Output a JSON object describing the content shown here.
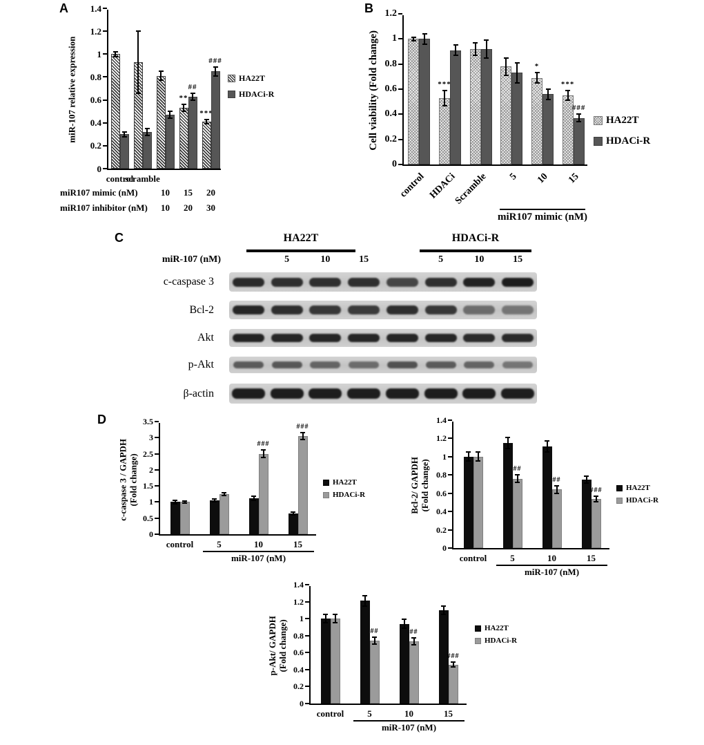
{
  "panels": {
    "a": "A",
    "b": "B",
    "c": "C",
    "d": "D"
  },
  "colors": {
    "dark_bar": "#565656",
    "black_bar": "#0d0d0d",
    "gray_bar": "#9b9b9b",
    "axis": "#000000"
  },
  "chart_data": [
    {
      "id": "A",
      "type": "bar",
      "ylabel": "miR-107 relative expression",
      "ylim": [
        0,
        1.4
      ],
      "ytick_step": 0.2,
      "categories": [
        "control",
        "scramble",
        "",
        "",
        ""
      ],
      "legend_position": "right",
      "series": [
        {
          "name": "HA22T",
          "style": "hatch-diagonal",
          "values": [
            1.0,
            0.93,
            0.81,
            0.53,
            0.41
          ],
          "errors": [
            0.02,
            0.27,
            0.04,
            0.03,
            0.02
          ],
          "annotations": [
            "",
            "",
            "",
            "**",
            "***"
          ]
        },
        {
          "name": "HDACi-R",
          "style": "solid-dark",
          "values": [
            0.3,
            0.32,
            0.47,
            0.63,
            0.85
          ],
          "errors": [
            0.02,
            0.03,
            0.03,
            0.03,
            0.04
          ],
          "annotations": [
            "",
            "",
            "",
            "##",
            "###"
          ]
        }
      ],
      "x_rows": [
        {
          "label": "miR107 mimic (nM)",
          "values": [
            "",
            "",
            "10",
            "15",
            "20"
          ]
        },
        {
          "label": "miR107 inhibitor (nM)",
          "values": [
            "",
            "",
            "10",
            "20",
            "30"
          ]
        }
      ]
    },
    {
      "id": "B",
      "type": "bar",
      "ylabel": "Cell viability (Fold change)",
      "ylim": [
        0,
        1.2
      ],
      "ytick_step": 0.2,
      "categories": [
        "control",
        "HDACi",
        "Scramble",
        "5",
        "10",
        "15"
      ],
      "legend_position": "right",
      "series": [
        {
          "name": "HA22T",
          "style": "hatch-check",
          "values": [
            1.0,
            0.53,
            0.92,
            0.78,
            0.69,
            0.55
          ],
          "errors": [
            0.015,
            0.06,
            0.05,
            0.07,
            0.04,
            0.04
          ],
          "annotations": [
            "",
            "***",
            "",
            "",
            "*",
            "***"
          ]
        },
        {
          "name": "HDACi-R",
          "style": "solid-dark",
          "values": [
            1.0,
            0.91,
            0.92,
            0.73,
            0.56,
            0.37
          ],
          "errors": [
            0.04,
            0.04,
            0.07,
            0.08,
            0.04,
            0.03
          ],
          "annotations": [
            "",
            "",
            "",
            "",
            "",
            "###"
          ]
        }
      ],
      "bracket": {
        "label": "miR107 mimic (nM)",
        "from": 3,
        "to": 5
      }
    },
    {
      "id": "D1",
      "type": "bar",
      "ylabel": "c-caspase 3 / GAPDH\n(Fold change)",
      "ylim": [
        0,
        3.5
      ],
      "ytick_step": 0.5,
      "categories": [
        "control",
        "5",
        "10",
        "15"
      ],
      "legend_position": "right",
      "series": [
        {
          "name": "HA22T",
          "style": "solid-black",
          "values": [
            1.0,
            1.05,
            1.12,
            0.65
          ],
          "errors": [
            0.05,
            0.04,
            0.06,
            0.04
          ],
          "annotations": [
            "",
            "",
            "",
            ""
          ]
        },
        {
          "name": "HDACi-R",
          "style": "solid-gray",
          "values": [
            1.0,
            1.25,
            2.5,
            3.05
          ],
          "errors": [
            0.04,
            0.04,
            0.12,
            0.1
          ],
          "annotations": [
            "",
            "",
            "###",
            "###"
          ]
        }
      ],
      "bracket": {
        "label": "miR-107 (nM)",
        "from": 1,
        "to": 3
      }
    },
    {
      "id": "D2",
      "type": "bar",
      "ylabel": "Bcl-2/ GAPDH\n(Fold change)",
      "ylim": [
        0,
        1.4
      ],
      "ytick_step": 0.2,
      "categories": [
        "control",
        "5",
        "10",
        "15"
      ],
      "legend_position": "right",
      "series": [
        {
          "name": "HA22T",
          "style": "solid-black",
          "values": [
            1.0,
            1.15,
            1.11,
            0.75
          ],
          "errors": [
            0.05,
            0.06,
            0.06,
            0.04
          ],
          "annotations": [
            "",
            "",
            "",
            ""
          ]
        },
        {
          "name": "HDACi-R",
          "style": "solid-gray",
          "values": [
            1.0,
            0.76,
            0.64,
            0.54
          ],
          "errors": [
            0.05,
            0.04,
            0.04,
            0.03
          ],
          "annotations": [
            "",
            "##",
            "##",
            "###"
          ]
        }
      ],
      "bracket": {
        "label": "miR-107 (nM)",
        "from": 1,
        "to": 3
      }
    },
    {
      "id": "D3",
      "type": "bar",
      "ylabel": "p-Akt/ GAPDH\n(Fold change)",
      "ylim": [
        0,
        1.4
      ],
      "ytick_step": 0.2,
      "categories": [
        "control",
        "5",
        "10",
        "15"
      ],
      "legend_position": "right",
      "series": [
        {
          "name": "HA22T",
          "style": "solid-black",
          "values": [
            1.0,
            1.21,
            0.94,
            1.1
          ],
          "errors": [
            0.05,
            0.06,
            0.05,
            0.05
          ],
          "annotations": [
            "",
            "",
            "",
            ""
          ]
        },
        {
          "name": "HDACi-R",
          "style": "solid-gray",
          "values": [
            1.0,
            0.74,
            0.73,
            0.46
          ],
          "errors": [
            0.05,
            0.04,
            0.04,
            0.03
          ],
          "annotations": [
            "",
            "##",
            "##",
            "###"
          ]
        }
      ],
      "bracket": {
        "label": "miR-107 (nM)",
        "from": 1,
        "to": 3
      }
    }
  ],
  "western_blot": {
    "group_headers": [
      "HA22T",
      "HDACi-R"
    ],
    "dose_row_label": "miR-107 (nM)",
    "doses": [
      "",
      "5",
      "10",
      "15",
      "",
      "5",
      "10",
      "15"
    ],
    "rows": [
      {
        "label": "c-caspase 3",
        "band_intensities": [
          0.88,
          0.85,
          0.85,
          0.85,
          0.72,
          0.85,
          0.92,
          0.95
        ]
      },
      {
        "label": "Bcl-2",
        "band_intensities": [
          0.9,
          0.85,
          0.8,
          0.78,
          0.85,
          0.8,
          0.5,
          0.45
        ]
      },
      {
        "label": "Akt",
        "band_intensities": [
          0.92,
          0.9,
          0.9,
          0.9,
          0.9,
          0.9,
          0.88,
          0.88
        ]
      },
      {
        "label": "p-Akt",
        "band_intensities": [
          0.6,
          0.62,
          0.55,
          0.5,
          0.65,
          0.6,
          0.55,
          0.45
        ]
      },
      {
        "label": "β-actin",
        "band_intensities": [
          0.95,
          0.95,
          0.95,
          0.95,
          0.95,
          0.95,
          0.95,
          0.95
        ]
      }
    ]
  }
}
